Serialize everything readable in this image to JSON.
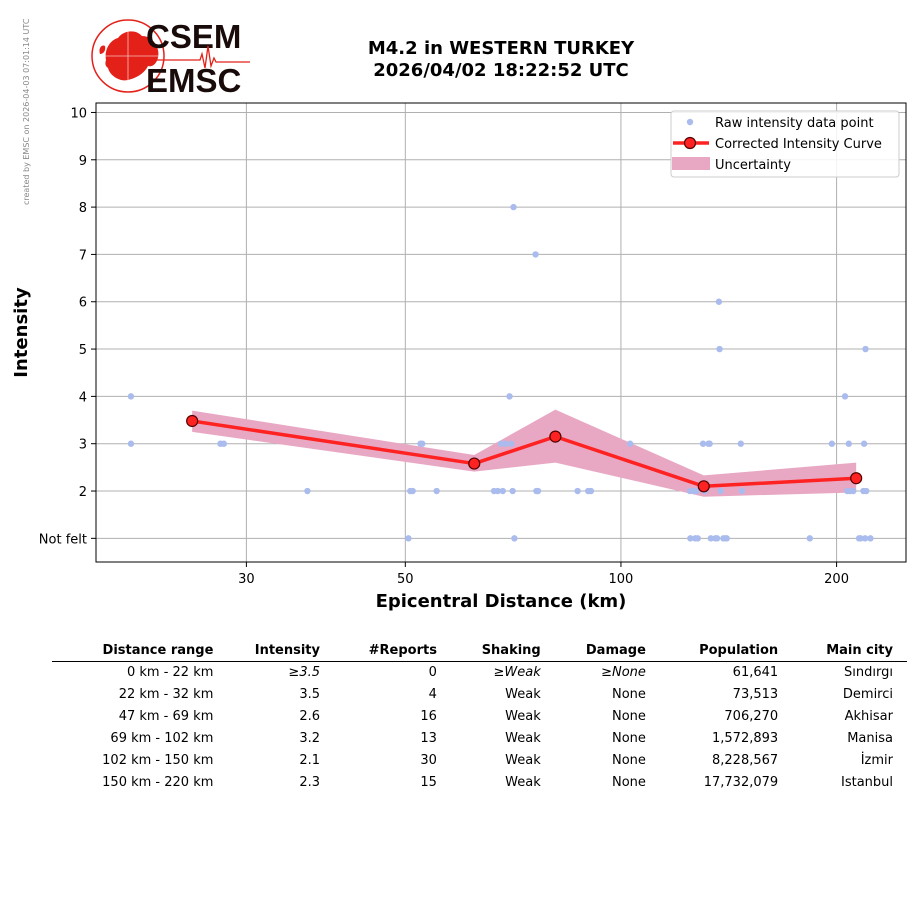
{
  "credit": "created by EMSC on 2026-04-03 07:01:14 UTC",
  "logo": {
    "line1": "CSEM",
    "line2": "EMSC",
    "colors": {
      "red": "#e32119",
      "dark": "#1a0b0b"
    }
  },
  "title_line1": "M4.2 in WESTERN TURKEY",
  "title_line2": "2026/04/02 18:22:52 UTC",
  "colors": {
    "raw": "#aabbee",
    "curve": "#ff2222",
    "band": "#e8a8c4",
    "grid": "#b0b0b0",
    "marker_edge": "#550000"
  },
  "chart_data": {
    "type": "scatter",
    "xlabel": "Epicentral Distance (km)",
    "ylabel": "Intensity",
    "x_scale": "log",
    "xlim": [
      18.5,
      250
    ],
    "ylim": [
      0.5,
      10.2
    ],
    "x_ticks": [
      30,
      50,
      100,
      200
    ],
    "y_ticks": [
      1,
      2,
      3,
      4,
      5,
      6,
      7,
      8,
      9,
      10
    ],
    "y_tick_labels": [
      "Not felt",
      "2",
      "3",
      "4",
      "5",
      "6",
      "7",
      "8",
      "9",
      "10"
    ],
    "grid": true,
    "legend_position": "top-right",
    "legend": [
      "Raw intensity data point",
      "Corrected Intensity Curve",
      "Uncertainty"
    ],
    "raw_points": [
      [
        20.7,
        4
      ],
      [
        20.7,
        3
      ],
      [
        27.6,
        3
      ],
      [
        27.9,
        3
      ],
      [
        36.5,
        2
      ],
      [
        50.5,
        1
      ],
      [
        50.8,
        2
      ],
      [
        51.2,
        2
      ],
      [
        52.5,
        3
      ],
      [
        52.8,
        3
      ],
      [
        55.3,
        2
      ],
      [
        66.5,
        2
      ],
      [
        67.3,
        2
      ],
      [
        68.0,
        3
      ],
      [
        68.4,
        2
      ],
      [
        69.0,
        3
      ],
      [
        69.9,
        4
      ],
      [
        70.3,
        3
      ],
      [
        70.6,
        2
      ],
      [
        70.8,
        8
      ],
      [
        71.0,
        1
      ],
      [
        76.0,
        7
      ],
      [
        76.2,
        2
      ],
      [
        76.6,
        2
      ],
      [
        87.0,
        2
      ],
      [
        90.0,
        2
      ],
      [
        90.8,
        2
      ],
      [
        103.0,
        3
      ],
      [
        124.8,
        2
      ],
      [
        125.0,
        1
      ],
      [
        126.5,
        2
      ],
      [
        127.0,
        1
      ],
      [
        127.5,
        2
      ],
      [
        128.0,
        1
      ],
      [
        130.2,
        3
      ],
      [
        131.0,
        2
      ],
      [
        132.5,
        3
      ],
      [
        133.0,
        3
      ],
      [
        133.5,
        1
      ],
      [
        135.5,
        1
      ],
      [
        136.2,
        1
      ],
      [
        137.0,
        6
      ],
      [
        137.3,
        5
      ],
      [
        137.8,
        2
      ],
      [
        139.0,
        1
      ],
      [
        140.0,
        1
      ],
      [
        140.5,
        1
      ],
      [
        147.0,
        3
      ],
      [
        147.5,
        2
      ],
      [
        183.5,
        1
      ],
      [
        197.0,
        3
      ],
      [
        205.5,
        4
      ],
      [
        207.0,
        2
      ],
      [
        208.0,
        3
      ],
      [
        209.0,
        2
      ],
      [
        211.0,
        2
      ],
      [
        215.0,
        1
      ],
      [
        216.0,
        1
      ],
      [
        218.0,
        2
      ],
      [
        218.5,
        3
      ],
      [
        219.2,
        1
      ],
      [
        219.5,
        5
      ],
      [
        220.0,
        2
      ],
      [
        223.0,
        1
      ]
    ],
    "series": [
      {
        "name": "Corrected Intensity Curve",
        "x": [
          25.2,
          62.4,
          81.0,
          130.5,
          213.0
        ],
        "y": [
          3.48,
          2.58,
          3.15,
          2.1,
          2.27
        ],
        "upper": [
          3.7,
          2.76,
          3.72,
          2.33,
          2.6
        ],
        "lower": [
          3.25,
          2.41,
          2.6,
          1.88,
          1.97
        ]
      }
    ]
  },
  "table": {
    "headers": [
      "Distance range",
      "Intensity",
      "#Reports",
      "Shaking",
      "Damage",
      "Population",
      "Main city"
    ],
    "rows": [
      {
        "range": "0 km -   22 km",
        "intensity": "≥3.5",
        "reports": "0",
        "shaking": "≥Weak",
        "damage": "≥None",
        "population": "61,641",
        "city": "Sındırgı"
      },
      {
        "range": "22 km -   32 km",
        "intensity": "3.5",
        "reports": "4",
        "shaking": "Weak",
        "damage": "None",
        "population": "73,513",
        "city": "Demirci"
      },
      {
        "range": "47 km -   69 km",
        "intensity": "2.6",
        "reports": "16",
        "shaking": "Weak",
        "damage": "None",
        "population": "706,270",
        "city": "Akhisar"
      },
      {
        "range": "69 km -  102 km",
        "intensity": "3.2",
        "reports": "13",
        "shaking": "Weak",
        "damage": "None",
        "population": "1,572,893",
        "city": "Manisa"
      },
      {
        "range": "102 km -  150 km",
        "intensity": "2.1",
        "reports": "30",
        "shaking": "Weak",
        "damage": "None",
        "population": "8,228,567",
        "city": "İzmir"
      },
      {
        "range": "150 km -  220 km",
        "intensity": "2.3",
        "reports": "15",
        "shaking": "Weak",
        "damage": "None",
        "population": "17,732,079",
        "city": "Istanbul"
      }
    ]
  }
}
